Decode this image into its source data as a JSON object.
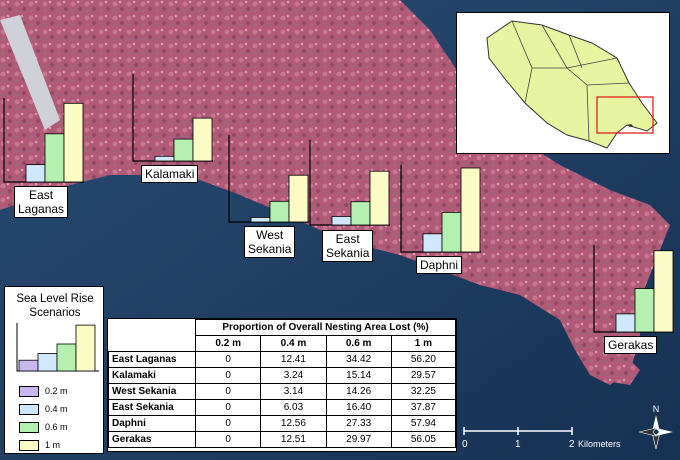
{
  "inset_map": {
    "region_fill": "#e8f5a0",
    "highlight_color": "#e01010"
  },
  "legend": {
    "title": "Sea Level Rise\nScenarios",
    "items": [
      {
        "label": "0.2 m",
        "color": "#c9b8f0"
      },
      {
        "label": "0.4 m",
        "color": "#cfe8fb"
      },
      {
        "label": "0.6 m",
        "color": "#b4f0b0"
      },
      {
        "label": "1 m",
        "color": "#fbfbc6"
      }
    ]
  },
  "table": {
    "title": "Proportion of Overall Nesting Area Lost  (%)",
    "columns": [
      "0.2 m",
      "0.4 m",
      "0.6 m",
      "1 m"
    ],
    "rows": [
      {
        "site": "East Laganas",
        "values": [
          "0",
          "12.41",
          "34.42",
          "56.20"
        ]
      },
      {
        "site": "Kalamaki",
        "values": [
          "0",
          "3.24",
          "15.14",
          "29.57"
        ]
      },
      {
        "site": "West Sekania",
        "values": [
          "0",
          "3.14",
          "14.26",
          "32.25"
        ]
      },
      {
        "site": "East Sekania",
        "values": [
          "0",
          "6.03",
          "16.40",
          "37.87"
        ]
      },
      {
        "site": "Daphni",
        "values": [
          "0",
          "12.56",
          "27.33",
          "57.94"
        ]
      },
      {
        "site": "Gerakas",
        "values": [
          "0",
          "12.51",
          "29.97",
          "56.05"
        ]
      }
    ]
  },
  "chart_data": {
    "type": "bar",
    "categories": [
      "0.2 m",
      "0.4 m",
      "0.6 m",
      "1 m"
    ],
    "colors": [
      "#c9b8f0",
      "#cfe8fb",
      "#b4f0b0",
      "#fbfbc6"
    ],
    "ylim": [
      0,
      60
    ],
    "series": [
      {
        "name": "East Laganas",
        "values": [
          0,
          12.41,
          34.42,
          56.2
        ]
      },
      {
        "name": "Kalamaki",
        "values": [
          0,
          3.24,
          15.14,
          29.57
        ]
      },
      {
        "name": "West Sekania",
        "values": [
          0,
          3.14,
          14.26,
          32.25
        ]
      },
      {
        "name": "East Sekania",
        "values": [
          0,
          6.03,
          16.4,
          37.87
        ]
      },
      {
        "name": "Daphni",
        "values": [
          0,
          12.56,
          27.33,
          57.94
        ]
      },
      {
        "name": "Gerakas",
        "values": [
          0,
          12.51,
          29.97,
          56.05
        ]
      }
    ]
  },
  "site_labels": [
    {
      "text": "East\nLaganas"
    },
    {
      "text": "Kalamaki"
    },
    {
      "text": "West\nSekania"
    },
    {
      "text": "East\nSekania"
    },
    {
      "text": "Daphni"
    },
    {
      "text": "Gerakas"
    }
  ],
  "scale": {
    "ticks": [
      "0",
      "1",
      "2"
    ],
    "unit": "Kilometers"
  },
  "north_label": "N"
}
